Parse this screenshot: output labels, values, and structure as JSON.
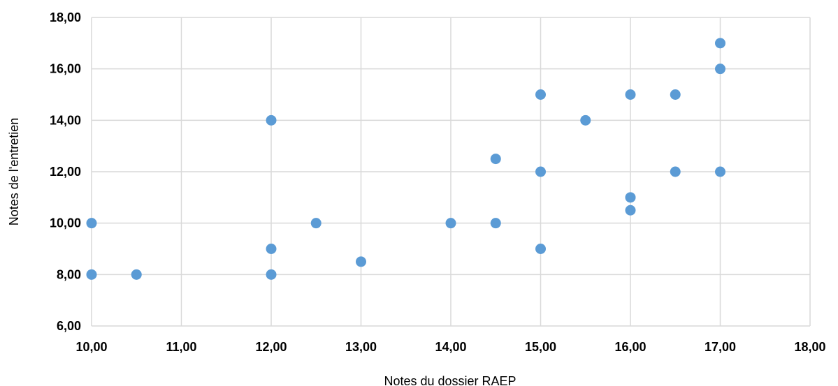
{
  "chart_data": {
    "type": "scatter",
    "title": "",
    "xlabel": "Notes du dossier RAEP",
    "ylabel": "Notes de l'entretien",
    "xlim": [
      10,
      18
    ],
    "ylim": [
      6,
      18
    ],
    "x_ticks": [
      "10,00",
      "11,00",
      "12,00",
      "13,00",
      "14,00",
      "15,00",
      "16,00",
      "17,00",
      "18,00"
    ],
    "y_ticks": [
      "6,00",
      "8,00",
      "10,00",
      "12,00",
      "14,00",
      "16,00",
      "18,00"
    ],
    "grid": true,
    "point_color": "#5b9bd5",
    "points": [
      {
        "x": 10,
        "y": 10
      },
      {
        "x": 10,
        "y": 8
      },
      {
        "x": 10.5,
        "y": 8
      },
      {
        "x": 12,
        "y": 14
      },
      {
        "x": 12,
        "y": 9
      },
      {
        "x": 12,
        "y": 8
      },
      {
        "x": 12.5,
        "y": 10
      },
      {
        "x": 13,
        "y": 8.5
      },
      {
        "x": 14,
        "y": 10
      },
      {
        "x": 14.5,
        "y": 12.5
      },
      {
        "x": 14.5,
        "y": 10
      },
      {
        "x": 15,
        "y": 15
      },
      {
        "x": 15,
        "y": 12
      },
      {
        "x": 15,
        "y": 9
      },
      {
        "x": 15.5,
        "y": 14
      },
      {
        "x": 16,
        "y": 15
      },
      {
        "x": 16,
        "y": 11
      },
      {
        "x": 16,
        "y": 10.5
      },
      {
        "x": 16.5,
        "y": 15
      },
      {
        "x": 16.5,
        "y": 12
      },
      {
        "x": 17,
        "y": 17
      },
      {
        "x": 17,
        "y": 16
      },
      {
        "x": 17,
        "y": 12
      }
    ]
  }
}
